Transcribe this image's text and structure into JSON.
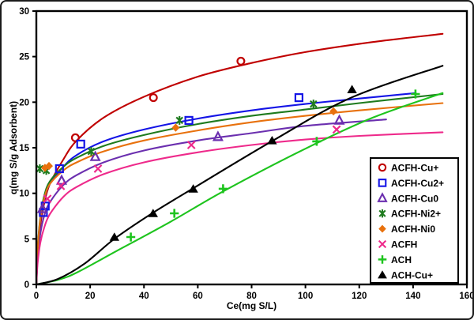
{
  "figure": {
    "background": "#ffffff",
    "border_color": "#1a1a1a"
  },
  "chart_data": {
    "type": "scatter",
    "title": "",
    "xlabel": "Ce(mg S/L)",
    "ylabel": "q(mg  S/g Adsorbent)",
    "xlim": [
      0,
      160
    ],
    "ylim": [
      0,
      30
    ],
    "x_ticks": [
      0,
      20,
      40,
      60,
      80,
      100,
      120,
      140,
      160
    ],
    "y_ticks": [
      0,
      5,
      10,
      15,
      20,
      25,
      30
    ],
    "grid": false,
    "legend_position": "inside-lower-right",
    "series": [
      {
        "name": "ACFH-Cu+",
        "color": "#C00000",
        "marker": "open-circle",
        "points": [
          [
            14.5,
            16.1
          ],
          [
            43.5,
            20.5
          ],
          [
            76,
            24.5
          ]
        ],
        "curve": [
          [
            0,
            0
          ],
          [
            0.5,
            3.5
          ],
          [
            1.5,
            6.5
          ],
          [
            3,
            9
          ],
          [
            5,
            11
          ],
          [
            10,
            13.7
          ],
          [
            15,
            15.8
          ],
          [
            25,
            18.3
          ],
          [
            40,
            20.6
          ],
          [
            60,
            22.8
          ],
          [
            80,
            24.3
          ],
          [
            100,
            25.5
          ],
          [
            125,
            26.6
          ],
          [
            151,
            27.5
          ]
        ]
      },
      {
        "name": "ACFH-Cu2+",
        "color": "#1414E6",
        "marker": "open-square",
        "points": [
          [
            2.6,
            7.9
          ],
          [
            3.3,
            8.6
          ],
          [
            8.6,
            12.7
          ],
          [
            16.5,
            15.4
          ],
          [
            56.7,
            18.0
          ],
          [
            97.6,
            20.5
          ]
        ],
        "curve": [
          [
            0,
            0
          ],
          [
            0.5,
            3.8
          ],
          [
            1.5,
            7.0
          ],
          [
            3,
            9.4
          ],
          [
            5,
            11.0
          ],
          [
            10,
            12.9
          ],
          [
            15,
            14.2
          ],
          [
            25,
            15.7
          ],
          [
            40,
            17.0
          ],
          [
            60,
            18.2
          ],
          [
            80,
            19.1
          ],
          [
            100,
            19.8
          ],
          [
            120,
            20.4
          ],
          [
            141,
            21.0
          ]
        ]
      },
      {
        "name": "ACFH-Cu0",
        "color": "#6B2FAF",
        "marker": "open-triangle",
        "points": [
          [
            2.3,
            8.3
          ],
          [
            9.4,
            11.4
          ],
          [
            21.9,
            14.0
          ],
          [
            67.5,
            16.2
          ],
          [
            112.6,
            18.0
          ]
        ],
        "curve": [
          [
            0,
            0
          ],
          [
            0.5,
            3.0
          ],
          [
            1.5,
            5.6
          ],
          [
            3,
            7.6
          ],
          [
            5,
            9.0
          ],
          [
            10,
            10.9
          ],
          [
            15,
            12.0
          ],
          [
            25,
            13.4
          ],
          [
            40,
            14.7
          ],
          [
            60,
            15.8
          ],
          [
            80,
            16.6
          ],
          [
            100,
            17.4
          ],
          [
            130,
            18.1
          ]
        ]
      },
      {
        "name": "ACFH-Ni2+",
        "color": "#1E7B1E",
        "marker": "star",
        "points": [
          [
            1.3,
            12.7
          ],
          [
            3.7,
            12.5
          ],
          [
            20.4,
            14.6
          ],
          [
            53.2,
            18.0
          ],
          [
            103,
            19.8
          ]
        ],
        "curve": [
          [
            0,
            0
          ],
          [
            0.5,
            4.0
          ],
          [
            1.5,
            7.4
          ],
          [
            3,
            9.8
          ],
          [
            5,
            11.3
          ],
          [
            10,
            12.9
          ],
          [
            15,
            13.9
          ],
          [
            25,
            15.2
          ],
          [
            40,
            16.4
          ],
          [
            60,
            17.6
          ],
          [
            80,
            18.5
          ],
          [
            100,
            19.2
          ],
          [
            120,
            19.9
          ],
          [
            151,
            20.9
          ]
        ]
      },
      {
        "name": "ACFH-Ni0",
        "color": "#E8710D",
        "marker": "diamond",
        "points": [
          [
            3.2,
            12.8
          ],
          [
            4.7,
            13.0
          ],
          [
            51.8,
            17.2
          ],
          [
            110.4,
            19.0
          ]
        ],
        "curve": [
          [
            0,
            0
          ],
          [
            0.5,
            3.9
          ],
          [
            1.5,
            7.2
          ],
          [
            3,
            9.5
          ],
          [
            5,
            11.0
          ],
          [
            10,
            12.5
          ],
          [
            15,
            13.4
          ],
          [
            25,
            14.6
          ],
          [
            40,
            15.8
          ],
          [
            60,
            16.9
          ],
          [
            80,
            17.8
          ],
          [
            100,
            18.5
          ],
          [
            120,
            19.1
          ],
          [
            151,
            19.9
          ]
        ]
      },
      {
        "name": "ACFH",
        "color": "#EE2A8B",
        "marker": "x",
        "points": [
          [
            4.1,
            9.4
          ],
          [
            9.1,
            10.8
          ],
          [
            22.9,
            12.7
          ],
          [
            57.6,
            15.3
          ],
          [
            111.6,
            17.0
          ]
        ],
        "curve": [
          [
            0,
            0
          ],
          [
            0.5,
            2.4
          ],
          [
            1.5,
            4.6
          ],
          [
            3,
            6.3
          ],
          [
            5,
            7.7
          ],
          [
            10,
            9.6
          ],
          [
            15,
            10.7
          ],
          [
            25,
            12.1
          ],
          [
            40,
            13.4
          ],
          [
            60,
            14.5
          ],
          [
            80,
            15.3
          ],
          [
            100,
            15.9
          ],
          [
            120,
            16.3
          ],
          [
            151,
            16.7
          ]
        ]
      },
      {
        "name": "ACH",
        "color": "#1EC41E",
        "marker": "plus",
        "points": [
          [
            35.1,
            5.2
          ],
          [
            51.3,
            7.8
          ],
          [
            69.4,
            10.5
          ],
          [
            104.2,
            15.7
          ],
          [
            140.9,
            20.9
          ]
        ],
        "curve": [
          [
            0,
            0
          ],
          [
            8,
            0.5
          ],
          [
            15,
            1.3
          ],
          [
            30,
            3.7
          ],
          [
            50,
            6.9
          ],
          [
            70,
            10.3
          ],
          [
            100,
            14.9
          ],
          [
            125,
            18.3
          ],
          [
            151,
            21.0
          ]
        ]
      },
      {
        "name": "ACH-Cu+",
        "color": "#000000",
        "marker": "filled-triangle",
        "points": [
          [
            29,
            5.2
          ],
          [
            43.4,
            7.8
          ],
          [
            58.3,
            10.5
          ],
          [
            87.6,
            15.8
          ],
          [
            117.3,
            21.4
          ]
        ],
        "curve": [
          [
            0,
            0
          ],
          [
            8,
            0.6
          ],
          [
            18,
            2.3
          ],
          [
            29,
            5.0
          ],
          [
            43,
            7.8
          ],
          [
            58,
            10.5
          ],
          [
            88,
            15.8
          ],
          [
            117,
            20.5
          ],
          [
            151,
            24.0
          ]
        ]
      }
    ]
  }
}
